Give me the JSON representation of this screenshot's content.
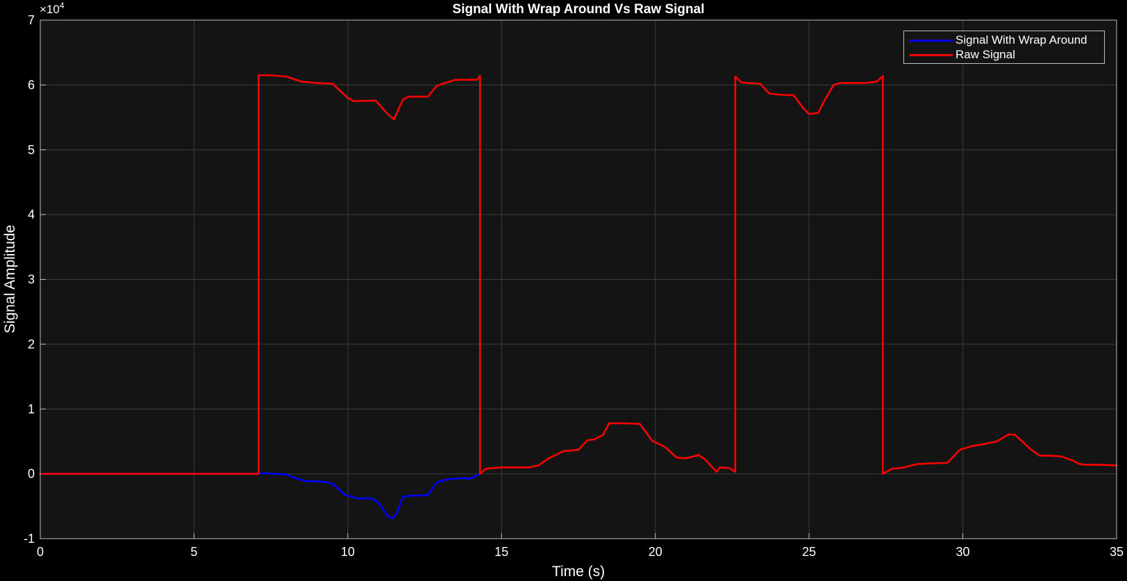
{
  "chart_data": {
    "type": "line",
    "title": "Signal With Wrap Around Vs Raw Signal",
    "xlabel": "Time (s)",
    "ylabel": "Signal Amplitude",
    "exponent_label": "×10",
    "exponent_power": "4",
    "xlim": [
      0,
      35
    ],
    "ylim": [
      -10000,
      70000
    ],
    "xticks": [
      0,
      5,
      10,
      15,
      20,
      25,
      30,
      35
    ],
    "xtick_labels": [
      "0",
      "5",
      "10",
      "15",
      "20",
      "25",
      "30",
      "35"
    ],
    "yticks": [
      -10000,
      0,
      10000,
      20000,
      30000,
      40000,
      50000,
      60000,
      70000
    ],
    "ytick_labels": [
      "-1",
      "0",
      "1",
      "2",
      "3",
      "4",
      "5",
      "6",
      "7"
    ],
    "grid": true,
    "legend_position": "top-right",
    "series": [
      {
        "name": "Signal With Wrap Around",
        "color": "#0000ff",
        "x": [
          0,
          7.1,
          7.2,
          7.5,
          8.0,
          8.2,
          8.6,
          9.2,
          9.5,
          9.9,
          10.3,
          10.8,
          11.0,
          11.3,
          11.45,
          11.6,
          11.8,
          12.0,
          12.6,
          12.9,
          13.2,
          13.5,
          14.0,
          14.3
        ],
        "y": [
          0,
          0,
          100,
          50,
          -100,
          -500,
          -1100,
          -1200,
          -1500,
          -3200,
          -3800,
          -3800,
          -4500,
          -6500,
          -6900,
          -6000,
          -3500,
          -3400,
          -3300,
          -1300,
          -900,
          -700,
          -700,
          0
        ]
      },
      {
        "name": "Raw Signal",
        "color": "#ff0000",
        "x": [
          0,
          7.1,
          7.1,
          7.5,
          8.0,
          8.5,
          9.0,
          9.5,
          10.0,
          10.2,
          10.9,
          11.3,
          11.5,
          11.8,
          12.0,
          12.6,
          12.9,
          13.5,
          14.2,
          14.3,
          14.3,
          14.5,
          15.0,
          15.5,
          15.9,
          16.2,
          16.5,
          16.8,
          17.0,
          17.5,
          17.8,
          18.0,
          18.3,
          18.5,
          19.0,
          19.5,
          19.9,
          20.3,
          20.7,
          21.0,
          21.4,
          21.6,
          21.8,
          22.0,
          22.1,
          22.4,
          22.6,
          22.6,
          22.8,
          23.0,
          23.4,
          23.7,
          24.0,
          24.5,
          24.8,
          25.0,
          25.3,
          25.5,
          25.8,
          26.0,
          26.8,
          27.2,
          27.4,
          27.4,
          27.7,
          28.0,
          28.5,
          28.9,
          29.5,
          29.9,
          30.3,
          30.6,
          31.1,
          31.5,
          31.7,
          32.2,
          32.5,
          32.8,
          33.2,
          33.6,
          33.8,
          34.0,
          34.5,
          35.0
        ],
        "y": [
          0,
          0,
          61500,
          61500,
          61300,
          60500,
          60300,
          60200,
          58000,
          57500,
          57600,
          55500,
          54700,
          57800,
          58200,
          58200,
          59900,
          60800,
          60800,
          61400,
          0,
          800,
          1000,
          1000,
          1000,
          1300,
          2300,
          3000,
          3500,
          3700,
          5200,
          5300,
          6000,
          7800,
          7800,
          7700,
          5100,
          4200,
          2500,
          2400,
          2900,
          2300,
          1300,
          300,
          1000,
          900,
          300,
          61300,
          60400,
          60300,
          60200,
          58700,
          58500,
          58400,
          56500,
          55500,
          55700,
          57600,
          60000,
          60300,
          60300,
          60500,
          61400,
          0,
          800,
          900,
          1500,
          1600,
          1700,
          3700,
          4300,
          4500,
          5000,
          6100,
          6000,
          3800,
          2800,
          2800,
          2700,
          2000,
          1500,
          1400,
          1400,
          1300
        ]
      }
    ]
  }
}
